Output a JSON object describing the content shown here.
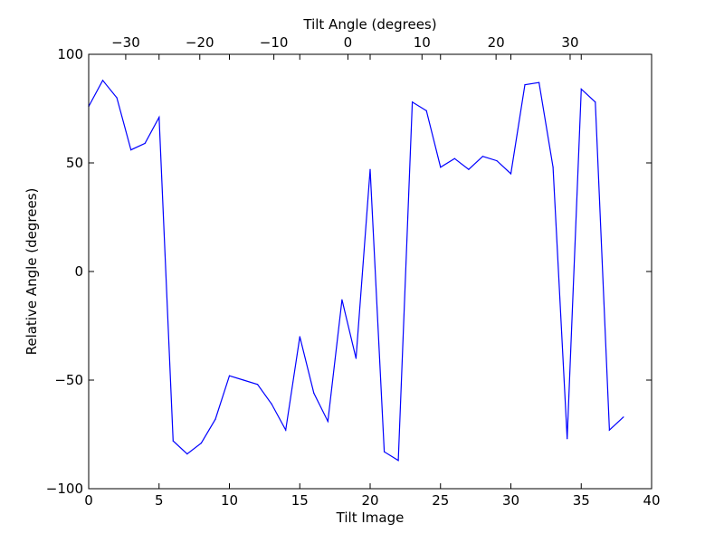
{
  "chart_data": {
    "type": "line",
    "xlabel": "Tilt Image",
    "ylabel": "Relative Angle (degrees)",
    "top_xlabel": "Tilt Angle (degrees)",
    "xlim": [
      0,
      40
    ],
    "ylim": [
      -100,
      100
    ],
    "top_xlim": [
      -35,
      41
    ],
    "x_ticks": [
      0,
      5,
      10,
      15,
      20,
      25,
      30,
      35,
      40
    ],
    "x_tick_labels": [
      "0",
      "5",
      "10",
      "15",
      "20",
      "25",
      "30",
      "35",
      "40"
    ],
    "y_ticks": [
      100,
      50,
      0,
      -50,
      -100
    ],
    "y_tick_labels": [
      "100",
      "50",
      "0",
      "−50",
      "−100"
    ],
    "top_ticks": [
      -30,
      -20,
      -10,
      0,
      10,
      20,
      30
    ],
    "top_tick_labels": [
      "−30",
      "−20",
      "−10",
      "0",
      "10",
      "20",
      "30"
    ],
    "grid": false,
    "line_color": "#0000ff",
    "series": [
      {
        "x": [
          0,
          1,
          2,
          3,
          4,
          5,
          6,
          7,
          8,
          9,
          10,
          11,
          12,
          13,
          14,
          15,
          16,
          17,
          18,
          19,
          20,
          21,
          22,
          23,
          24,
          25,
          26,
          27,
          28,
          29,
          30,
          31,
          32,
          33,
          34,
          35,
          36,
          37,
          38
        ],
        "values": [
          76,
          88,
          80,
          56,
          59,
          71,
          -78,
          -84,
          -79,
          -68,
          -48,
          -50,
          -52,
          -61,
          -73,
          -30,
          -56,
          -69,
          -13,
          -40,
          47,
          -83,
          -87,
          78,
          74,
          48,
          52,
          47,
          53,
          51,
          45,
          86,
          87,
          48,
          -77,
          84,
          78,
          -73,
          -67
        ]
      }
    ]
  }
}
